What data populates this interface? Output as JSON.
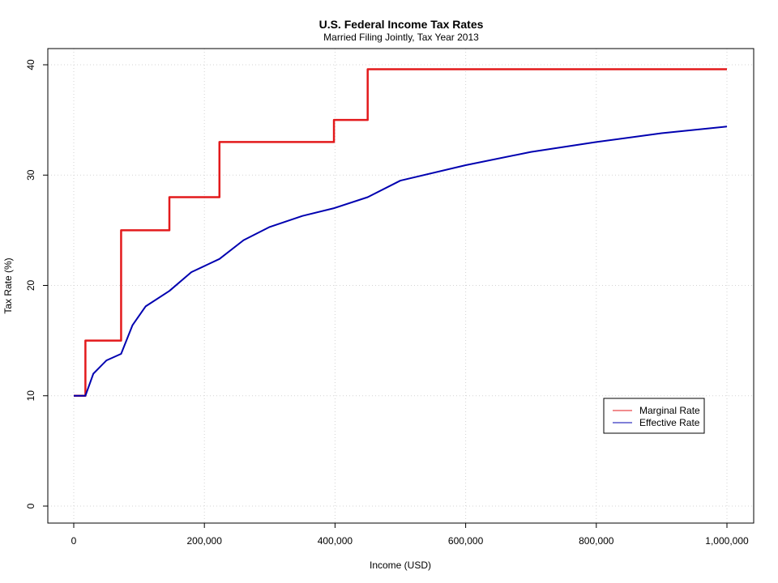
{
  "chart_data": {
    "type": "line",
    "title": "U.S. Federal Income Tax Rates",
    "subtitle": "Married Filing Jointly, Tax Year 2013",
    "xlabel": "Income (USD)",
    "ylabel": "Tax Rate (%)",
    "xlim": [
      0,
      1000000
    ],
    "ylim": [
      0,
      40
    ],
    "x_ticks": [
      0,
      200000,
      400000,
      600000,
      800000,
      1000000
    ],
    "x_tick_labels": [
      "0",
      "200,000",
      "400,000",
      "600,000",
      "800,000",
      "1,000,000"
    ],
    "y_ticks": [
      0,
      10,
      20,
      30,
      40
    ],
    "y_tick_labels": [
      "0",
      "10",
      "20",
      "30",
      "40"
    ],
    "grid": true,
    "legend_position": "bottom-right",
    "brackets": [
      {
        "from": 0,
        "to": 17850,
        "rate": 10
      },
      {
        "from": 17850,
        "to": 72500,
        "rate": 15
      },
      {
        "from": 72500,
        "to": 146400,
        "rate": 25
      },
      {
        "from": 146400,
        "to": 223050,
        "rate": 28
      },
      {
        "from": 223050,
        "to": 398350,
        "rate": 33
      },
      {
        "from": 398350,
        "to": 450000,
        "rate": 35
      },
      {
        "from": 450000,
        "to": 1000000,
        "rate": 39.6
      }
    ],
    "series": [
      {
        "name": "Marginal Rate",
        "color": "#e31a1c",
        "x": [
          0,
          17850,
          17850,
          72500,
          72500,
          146400,
          146400,
          223050,
          223050,
          398350,
          398350,
          450000,
          450000,
          1000000
        ],
        "y": [
          10,
          10,
          15,
          15,
          25,
          25,
          28,
          28,
          33,
          33,
          35,
          35,
          39.6,
          39.6
        ]
      },
      {
        "name": "Effective Rate",
        "color": "#0000b0",
        "x": [
          0,
          17850,
          30000,
          50000,
          72500,
          90000,
          110000,
          146400,
          180000,
          223050,
          260000,
          300000,
          350000,
          398350,
          450000,
          500000,
          600000,
          700000,
          800000,
          900000,
          1000000
        ],
        "y": [
          10,
          10,
          12.0,
          13.2,
          13.8,
          16.4,
          18.1,
          19.5,
          21.2,
          22.4,
          24.1,
          25.3,
          26.3,
          27.0,
          28.0,
          29.5,
          30.9,
          32.1,
          33.0,
          33.8,
          34.4
        ]
      }
    ]
  }
}
